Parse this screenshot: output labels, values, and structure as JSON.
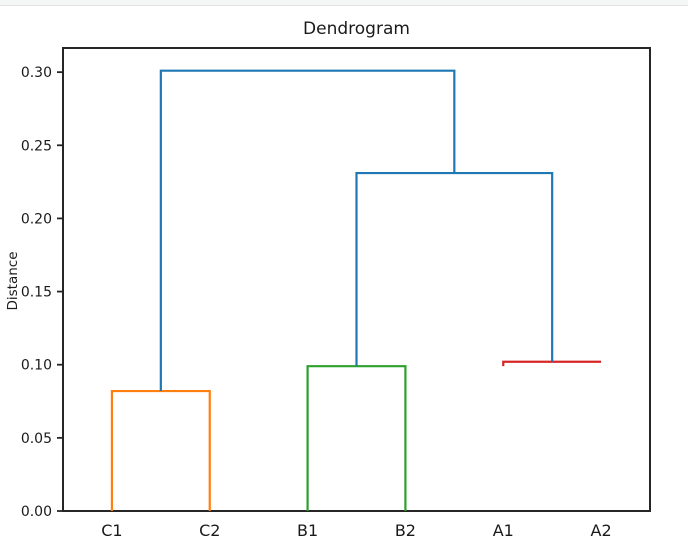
{
  "window": {
    "top_strip_color": "#f5f6f6"
  },
  "chart_data": {
    "type": "dendrogram",
    "title": "Dendrogram",
    "xlabel": "",
    "ylabel": "Distance",
    "leaves": [
      {
        "label": "C1",
        "x": 5,
        "color": "#ff7f0e"
      },
      {
        "label": "C2",
        "x": 15,
        "color": "#ff7f0e"
      },
      {
        "label": "B1",
        "x": 25,
        "color": "#2ca02c"
      },
      {
        "label": "B2",
        "x": 35,
        "color": "#2ca02c"
      },
      {
        "label": "A1",
        "x": 45,
        "color": "#d62728"
      },
      {
        "label": "A2",
        "x": 55,
        "color": "#d62728"
      }
    ],
    "links": [
      {
        "pair": "C1-C2",
        "x1": 5,
        "y1": 0,
        "x2": 15,
        "y2": 0,
        "height": 0.082,
        "color": "#ff7f0e"
      },
      {
        "pair": "B1-B2",
        "x1": 25,
        "y1": 0,
        "x2": 35,
        "y2": 0,
        "height": 0.099,
        "color": "#2ca02c"
      },
      {
        "pair": "A1-A2",
        "x1": 45,
        "y1": 0.099,
        "x2": 55,
        "y2": 0.102,
        "height": 0.102,
        "color": "#d62728"
      },
      {
        "pair": "(B1,B2)-(A1,A2)",
        "x1": 30,
        "y1": 0.099,
        "x2": 50,
        "y2": 0.102,
        "height": 0.231,
        "color": "#1f77b4"
      },
      {
        "pair": "(C1,C2)-((B1,B2),(A1,A2))",
        "x1": 10,
        "y1": 0.082,
        "x2": 40,
        "y2": 0.231,
        "height": 0.301,
        "color": "#1f77b4"
      }
    ],
    "yticks": [
      {
        "value": 0.0,
        "label": "0.00"
      },
      {
        "value": 0.05,
        "label": "0.05"
      },
      {
        "value": 0.1,
        "label": "0.10"
      },
      {
        "value": 0.15,
        "label": "0.15"
      },
      {
        "value": 0.2,
        "label": "0.20"
      },
      {
        "value": 0.25,
        "label": "0.25"
      },
      {
        "value": 0.3,
        "label": "0.30"
      }
    ],
    "xlim": [
      0,
      60
    ],
    "ylim": [
      0,
      0.3165
    ],
    "grid": false,
    "legend": null,
    "colors": {
      "blue": "#1f77b4",
      "orange": "#ff7f0e",
      "green": "#2ca02c",
      "red": "#d62728",
      "spine": "#262626",
      "text": "#1a1a1a"
    }
  }
}
